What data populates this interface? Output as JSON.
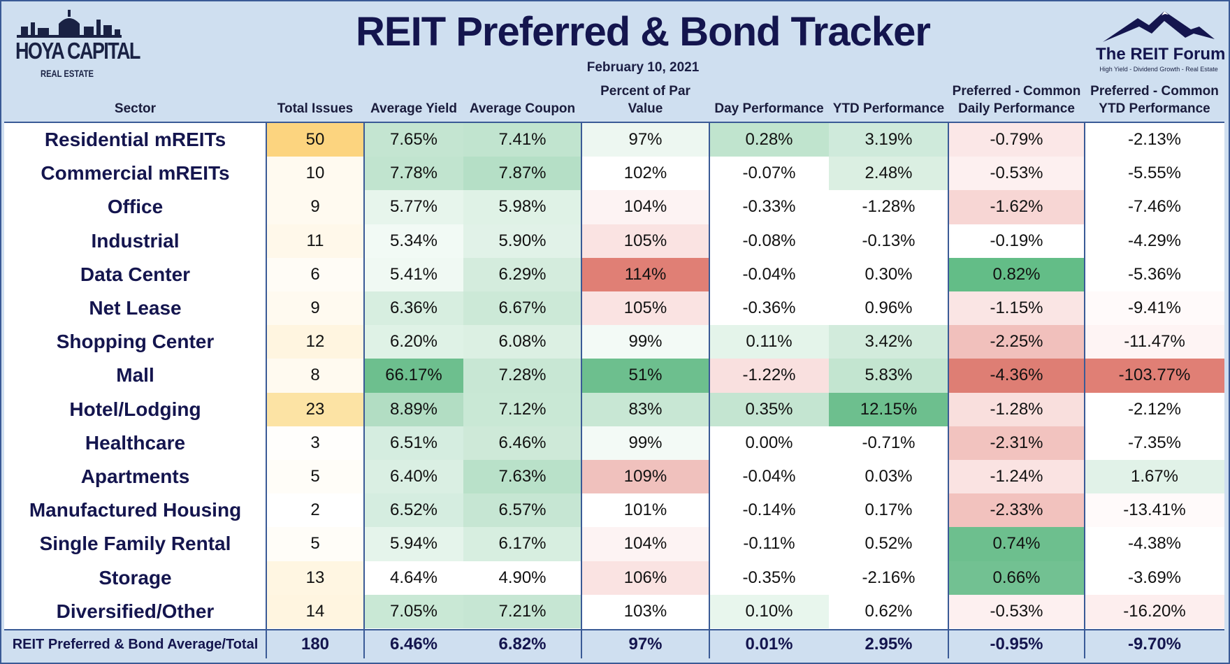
{
  "header": {
    "title": "REIT Preferred & Bond Tracker",
    "date": "February 10, 2021",
    "left_logo": {
      "name": "HOYA CAPITAL",
      "sub": "REAL ESTATE"
    },
    "right_logo": {
      "name": "The REIT Forum",
      "tagline": "High Yield - Dividend Growth - Real Estate"
    }
  },
  "colors": {
    "panel": "#cfdff0",
    "border": "#3a5a96",
    "title": "#14154e",
    "positive_green": "#57bb8a",
    "negative_red": "#e67c73",
    "count_yellow": "#fdd17a"
  },
  "chart_data": {
    "type": "table",
    "columns": [
      "Sector",
      "Total Issues",
      "Average Yield",
      "Average Coupon",
      "Percent of Par Value",
      "Day Performance",
      "YTD Performance",
      "Preferred - Common Daily Performance",
      "Preferred - Common YTD Performance"
    ],
    "rows": [
      [
        "Residential mREITs",
        "50",
        "7.65%",
        "7.41%",
        "97%",
        "0.28%",
        "3.19%",
        "-0.79%",
        "-2.13%"
      ],
      [
        "Commercial mREITs",
        "10",
        "7.78%",
        "7.87%",
        "102%",
        "-0.07%",
        "2.48%",
        "-0.53%",
        "-5.55%"
      ],
      [
        "Office",
        "9",
        "5.77%",
        "5.98%",
        "104%",
        "-0.33%",
        "-1.28%",
        "-1.62%",
        "-7.46%"
      ],
      [
        "Industrial",
        "11",
        "5.34%",
        "5.90%",
        "105%",
        "-0.08%",
        "-0.13%",
        "-0.19%",
        "-4.29%"
      ],
      [
        "Data Center",
        "6",
        "5.41%",
        "6.29%",
        "114%",
        "-0.04%",
        "0.30%",
        "0.82%",
        "-5.36%"
      ],
      [
        "Net Lease",
        "9",
        "6.36%",
        "6.67%",
        "105%",
        "-0.36%",
        "0.96%",
        "-1.15%",
        "-9.41%"
      ],
      [
        "Shopping Center",
        "12",
        "6.20%",
        "6.08%",
        "99%",
        "0.11%",
        "3.42%",
        "-2.25%",
        "-11.47%"
      ],
      [
        "Mall",
        "8",
        "66.17%",
        "7.28%",
        "51%",
        "-1.22%",
        "5.83%",
        "-4.36%",
        "-103.77%"
      ],
      [
        "Hotel/Lodging",
        "23",
        "8.89%",
        "7.12%",
        "83%",
        "0.35%",
        "12.15%",
        "-1.28%",
        "-2.12%"
      ],
      [
        "Healthcare",
        "3",
        "6.51%",
        "6.46%",
        "99%",
        "0.00%",
        "-0.71%",
        "-2.31%",
        "-7.35%"
      ],
      [
        "Apartments",
        "5",
        "6.40%",
        "7.63%",
        "109%",
        "-0.04%",
        "0.03%",
        "-1.24%",
        "1.67%"
      ],
      [
        "Manufactured Housing",
        "2",
        "6.52%",
        "6.57%",
        "101%",
        "-0.14%",
        "0.17%",
        "-2.33%",
        "-13.41%"
      ],
      [
        "Single Family Rental",
        "5",
        "5.94%",
        "6.17%",
        "104%",
        "-0.11%",
        "0.52%",
        "0.74%",
        "-4.38%"
      ],
      [
        "Storage",
        "13",
        "4.64%",
        "4.90%",
        "106%",
        "-0.35%",
        "-2.16%",
        "0.66%",
        "-3.69%"
      ],
      [
        "Diversified/Other",
        "14",
        "7.05%",
        "7.21%",
        "103%",
        "0.10%",
        "0.62%",
        "-0.53%",
        "-16.20%"
      ]
    ],
    "footer": [
      "REIT Preferred & Bond Average/Total",
      "180",
      "6.46%",
      "6.82%",
      "97%",
      "0.01%",
      "2.95%",
      "-0.95%",
      "-9.70%"
    ],
    "cell_colors": [
      [
        "",
        "#fcd47f",
        "#c4e5d1",
        "#c1e4cf",
        "#edf7f1",
        "#c0e4ce",
        "#cfeadb",
        "#fbe7e7",
        "#ffffff"
      ],
      [
        "",
        "#fffaf0",
        "#c1e4cf",
        "#b5dfc6",
        "#ffffff",
        "#ffffff",
        "#dbefe2",
        "#fdf0f0",
        "#ffffff"
      ],
      [
        "",
        "#fffaf0",
        "#e7f5ec",
        "#dff2e6",
        "#fdf3f3",
        "#ffffff",
        "#ffffff",
        "#f7d6d4",
        "#ffffff"
      ],
      [
        "",
        "#fff8ea",
        "#f2faf5",
        "#e1f2e8",
        "#fae3e2",
        "#ffffff",
        "#ffffff",
        "#ffffff",
        "#ffffff"
      ],
      [
        "",
        "#fffcf6",
        "#f0f9f3",
        "#d4ecdd",
        "#e07f75",
        "#ffffff",
        "#ffffff",
        "#63bd87",
        "#ffffff"
      ],
      [
        "",
        "#fffaf0",
        "#d7eee0",
        "#cce9d7",
        "#fae3e2",
        "#ffffff",
        "#ffffff",
        "#fae5e4",
        "#fffafa"
      ],
      [
        "",
        "#fff5e0",
        "#dff2e6",
        "#dcf0e3",
        "#f3faf6",
        "#e4f4ea",
        "#d2ebdc",
        "#f1c0bc",
        "#fef4f4"
      ],
      [
        "",
        "#fffaf0",
        "#6dbf8e",
        "#c8e7d4",
        "#6dbf8e",
        "#f9e0df",
        "#c3e5d0",
        "#de7e74",
        "#e07f75"
      ],
      [
        "",
        "#fce3a4",
        "#b2ddc3",
        "#c9e8d5",
        "#c8e7d4",
        "#c4e5d1",
        "#6dbf8e",
        "#f9dfdd",
        "#ffffff"
      ],
      [
        "",
        "#fffefc",
        "#d5ede0",
        "#cee9d8",
        "#f3faf6",
        "#ffffff",
        "#ffffff",
        "#f2c3bf",
        "#ffffff"
      ],
      [
        "",
        "#fffdf8",
        "#daefe3",
        "#b9e1c9",
        "#f0c1bd",
        "#ffffff",
        "#ffffff",
        "#fae3e2",
        "#e1f2e8"
      ],
      [
        "",
        "#ffffff",
        "#d5ede0",
        "#c6e6d3",
        "#ffffff",
        "#ffffff",
        "#ffffff",
        "#f2c2be",
        "#fffafa"
      ],
      [
        "",
        "#fffdf8",
        "#e5f4eb",
        "#d7eee0",
        "#fdf3f3",
        "#ffffff",
        "#ffffff",
        "#6dbf8e",
        "#ffffff"
      ],
      [
        "",
        "#fff6e2",
        "#ffffff",
        "#ffffff",
        "#fae3e2",
        "#ffffff",
        "#ffffff",
        "#72c192",
        "#ffffff"
      ],
      [
        "",
        "#fff5e0",
        "#c9e8d5",
        "#c6e6d3",
        "#ffffff",
        "#e8f6ed",
        "#ffffff",
        "#fdf0f0",
        "#fdeeee"
      ]
    ]
  }
}
